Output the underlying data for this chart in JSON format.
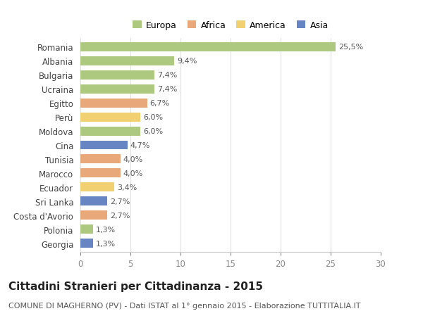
{
  "countries": [
    "Romania",
    "Albania",
    "Bulgaria",
    "Ucraina",
    "Egitto",
    "Perù",
    "Moldova",
    "Cina",
    "Tunisia",
    "Marocco",
    "Ecuador",
    "Sri Lanka",
    "Costa d'Avorio",
    "Polonia",
    "Georgia"
  ],
  "values": [
    25.5,
    9.4,
    7.4,
    7.4,
    6.7,
    6.0,
    6.0,
    4.7,
    4.0,
    4.0,
    3.4,
    2.7,
    2.7,
    1.3,
    1.3
  ],
  "labels": [
    "25,5%",
    "9,4%",
    "7,4%",
    "7,4%",
    "6,7%",
    "6,0%",
    "6,0%",
    "4,7%",
    "4,0%",
    "4,0%",
    "3,4%",
    "2,7%",
    "2,7%",
    "1,3%",
    "1,3%"
  ],
  "continents": [
    "Europa",
    "Europa",
    "Europa",
    "Europa",
    "Africa",
    "America",
    "Europa",
    "Asia",
    "Africa",
    "Africa",
    "America",
    "Asia",
    "Africa",
    "Europa",
    "Asia"
  ],
  "continent_colors": {
    "Europa": "#adc97f",
    "Africa": "#e8a87a",
    "America": "#f0d070",
    "Asia": "#6685c2"
  },
  "legend_order": [
    "Europa",
    "Africa",
    "America",
    "Asia"
  ],
  "title": "Cittadini Stranieri per Cittadinanza - 2015",
  "subtitle": "COMUNE DI MAGHERNO (PV) - Dati ISTAT al 1° gennaio 2015 - Elaborazione TUTTITALIA.IT",
  "xlim": [
    0,
    30
  ],
  "xticks": [
    0,
    5,
    10,
    15,
    20,
    25,
    30
  ],
  "background_color": "#ffffff",
  "plot_bg_color": "#ffffff",
  "grid_color": "#e0e0e0",
  "bar_height": 0.65,
  "title_fontsize": 11,
  "subtitle_fontsize": 8,
  "label_fontsize": 8,
  "tick_fontsize": 8.5,
  "legend_fontsize": 9
}
